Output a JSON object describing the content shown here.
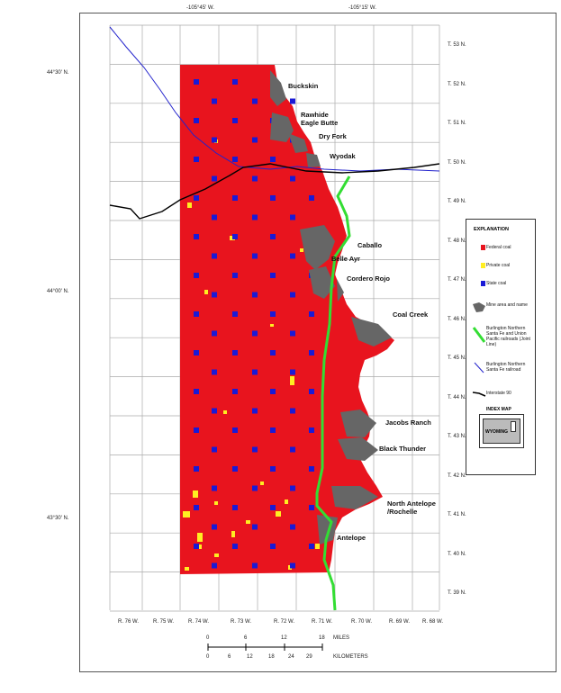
{
  "top_labels": {
    "left": "-105°45' W.",
    "right": "-105°15' W."
  },
  "lat_labels": {
    "top": "44°30' N.",
    "mid": "44°00' N.",
    "bottom": "43°30' N."
  },
  "townships": [
    "T. 53 N.",
    "T. 52 N.",
    "T. 51 N.",
    "T. 50 N.",
    "T. 49 N.",
    "T. 48 N.",
    "T. 47 N.",
    "T. 46 N.",
    "T. 45 N.",
    "T. 44 N.",
    "T. 43 N.",
    "T. 42 N.",
    "T. 41 N.",
    "T. 40 N.",
    "T. 39 N."
  ],
  "ranges": [
    "R. 76 W.",
    "R. 75 W.",
    "R. 74 W.",
    "R. 73 W.",
    "R. 72 W.",
    "R. 71 W.",
    "R. 70 W.",
    "R. 69 W.",
    "R. 68 W."
  ],
  "mines": [
    "Buckskin",
    "Rawhide",
    "Eagle Butte",
    "Dry Fork",
    "Wyodak",
    "Caballo",
    "Belle Ayr",
    "Cordero Rojo",
    "Coal Creek",
    "Jacobs Ranch",
    "Black Thunder",
    "North Antelope",
    "/Rochelle",
    "Antelope"
  ],
  "legend": {
    "title": "EXPLANATION",
    "items": [
      {
        "label": "Federal coal",
        "color": "#e8141e"
      },
      {
        "label": "Private coal",
        "color": "#ffee22"
      },
      {
        "label": "State coal",
        "color": "#1a1ad6"
      },
      {
        "label": "Mine area and name",
        "color": "#666666"
      },
      {
        "label": "Burlington Northern Santa Fe and Union Pacific railroads (Joint Line)",
        "color": "#33dd33"
      },
      {
        "label": "Burlington Northern Santa Fe railroad",
        "color": "#2222cc"
      },
      {
        "label": "Interstate 90",
        "color": "#000000"
      }
    ],
    "index_title": "INDEX MAP",
    "index_state": "WYOMING"
  },
  "scale": {
    "miles_ticks": [
      "0",
      "6",
      "12",
      "18"
    ],
    "miles_label": "MILES",
    "km_ticks": [
      "0",
      "6",
      "12",
      "18",
      "24",
      "29"
    ],
    "km_label": "KILOMETERS"
  }
}
